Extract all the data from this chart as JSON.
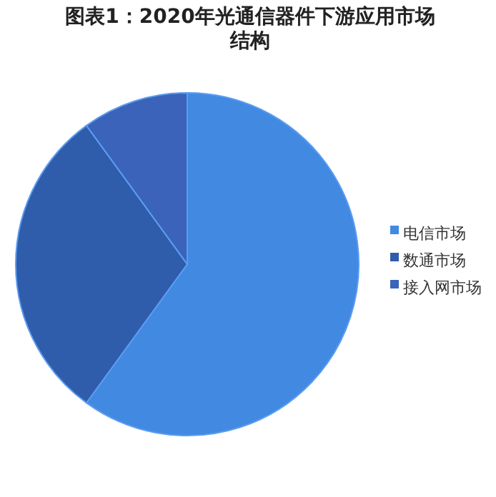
{
  "chart_data": {
    "type": "pie",
    "title": "图表1：2020年光通信器件下游应用市场结构",
    "categories": [
      "电信市场",
      "数通市场",
      "接入网市场"
    ],
    "values": [
      60,
      30,
      10
    ],
    "colors": [
      "#4189e1",
      "#2f5cab",
      "#3a63b9"
    ],
    "legend": "right"
  }
}
